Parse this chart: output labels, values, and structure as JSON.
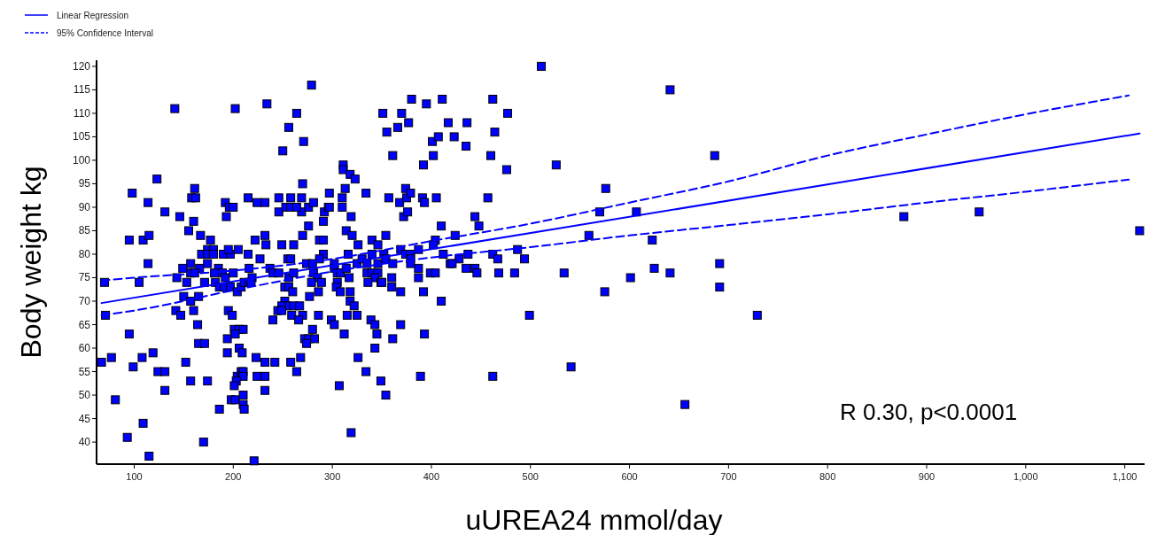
{
  "chart_data": {
    "type": "scatter",
    "xlabel": "uUREA24 mmol/day",
    "ylabel": "Body weight kg",
    "xlim": [
      62,
      1120
    ],
    "ylim": [
      35.3,
      121.3
    ],
    "xticks": [
      100,
      200,
      300,
      400,
      500,
      600,
      700,
      800,
      900,
      {
        "value": 1000,
        "label": "1,000"
      },
      {
        "value": 1100,
        "label": "1,100"
      }
    ],
    "yticks": [
      40,
      45,
      50,
      55,
      60,
      65,
      70,
      75,
      80,
      85,
      90,
      95,
      100,
      105,
      110,
      115,
      120
    ],
    "grid": false,
    "legend": "top left",
    "annotations": [
      "R 0.30, p<0.0001"
    ],
    "series": [
      {
        "color": "#0000ff",
        "marker": "square",
        "x": [
          141,
          202,
          123,
          98,
          114,
          131,
          146,
          70,
          71,
          95,
          109,
          115,
          114,
          105,
          95,
          67,
          77,
          108,
          119,
          99,
          124,
          131,
          131,
          81,
          109,
          93,
          115,
          161,
          158,
          162,
          160,
          155,
          167,
          177,
          168,
          174,
          180,
          174,
          180,
          157,
          174,
          149,
          166,
          185,
          157,
          161,
          181,
          143,
          153,
          171,
          182,
          150,
          157,
          165,
          142,
          147,
          160,
          164,
          165,
          171,
          152,
          157,
          174,
          170,
          186,
          192,
          193,
          196,
          200,
          215,
          224,
          232,
          190,
          197,
          195,
          205,
          215,
          200,
          216,
          219,
          227,
          222,
          232,
          233,
          189,
          192,
          186,
          191,
          197,
          204,
          208,
          211,
          216,
          218,
          195,
          199,
          194,
          201,
          206,
          210,
          202,
          206,
          209,
          194,
          223,
          232,
          204,
          208,
          210,
          210,
          203,
          201,
          198,
          202,
          210,
          210,
          211,
          224,
          232,
          232,
          221,
          234,
          279,
          264,
          256,
          271,
          250,
          351,
          370,
          380,
          395,
          411,
          417,
          355,
          366,
          377,
          401,
          407,
          361,
          402,
          392,
          311,
          311,
          318,
          323,
          270,
          297,
          313,
          334,
          357,
          368,
          374,
          375,
          379,
          391,
          393,
          405,
          372,
          376,
          310,
          310,
          319,
          292,
          291,
          296,
          276,
          269,
          269,
          258,
          246,
          246,
          253,
          258,
          264,
          276,
          281,
          297,
          270,
          287,
          291,
          314,
          320,
          354,
          340,
          346,
          326,
          249,
          261,
          255,
          258,
          291,
          287,
          274,
          280,
          302,
          316,
          325,
          330,
          335,
          340,
          346,
          352,
          354,
          369,
          374,
          379,
          379,
          387,
          404,
          410,
          402,
          412,
          419,
          387,
          361,
          379,
          237,
          240,
          246,
          256,
          261,
          281,
          285,
          302,
          305,
          308,
          314,
          317,
          335,
          340,
          346,
          343,
          349,
          360,
          387,
          399,
          404,
          252,
          256,
          260,
          279,
          289,
          305,
          304,
          308,
          318,
          336,
          350,
          360,
          369,
          392,
          410,
          277,
          286,
          252,
          254,
          249,
          261,
          267,
          245,
          249,
          259,
          270,
          266,
          240,
          286,
          299,
          302,
          315,
          325,
          339,
          343,
          369,
          318,
          322,
          312,
          345,
          361,
          393,
          280,
          272,
          276,
          282,
          274,
          343,
          268,
          326,
          242,
          258,
          264,
          334,
          389,
          349,
          307,
          354,
          319,
          511,
          641,
          462,
          477,
          436,
          423,
          464,
          435,
          460,
          526,
          476,
          457,
          576,
          444,
          448,
          570,
          607,
          424,
          559,
          623,
          437,
          462,
          487,
          428,
          467,
          494,
          421,
          435,
          444,
          446,
          468,
          484,
          534,
          625,
          601,
          641,
          575,
          499,
          541,
          462,
          656,
          686,
          691,
          691,
          729,
          877,
          953,
          1115
        ],
        "values": [
          111,
          111,
          96,
          93,
          91,
          89,
          88,
          74,
          67,
          83,
          83,
          84,
          78,
          74,
          63,
          57,
          58,
          58,
          59,
          56,
          55,
          55,
          51,
          49,
          44,
          41,
          37,
          94,
          92,
          92,
          87,
          85,
          84,
          83,
          80,
          81,
          81,
          80,
          80,
          78,
          78,
          77,
          77,
          77,
          76,
          76,
          76,
          75,
          74,
          74,
          74,
          71,
          70,
          71,
          68,
          67,
          68,
          65,
          61,
          61,
          57,
          53,
          53,
          40,
          47,
          91,
          88,
          90,
          90,
          92,
          91,
          91,
          80,
          80,
          81,
          81,
          80,
          76,
          77,
          75,
          79,
          83,
          84,
          82,
          76,
          75,
          73,
          73,
          73,
          72,
          73,
          74,
          74,
          74,
          68,
          67,
          62,
          64,
          64,
          64,
          63,
          60,
          59,
          59,
          58,
          57,
          54,
          55,
          55,
          54,
          53,
          52,
          49,
          49,
          50,
          48,
          47,
          54,
          54,
          51,
          36,
          112,
          116,
          110,
          107,
          104,
          102,
          110,
          110,
          113,
          112,
          113,
          108,
          106,
          107,
          108,
          104,
          105,
          101,
          101,
          99,
          99,
          98,
          97,
          96,
          95,
          93,
          94,
          93,
          92,
          91,
          94,
          92,
          93,
          92,
          91,
          92,
          88,
          89,
          92,
          90,
          88,
          89,
          87,
          90,
          86,
          89,
          92,
          92,
          89,
          92,
          90,
          90,
          90,
          90,
          91,
          90,
          84,
          83,
          83,
          85,
          84,
          84,
          83,
          82,
          82,
          82,
          82,
          79,
          79,
          80,
          79,
          78,
          78,
          78,
          80,
          78,
          79,
          78,
          80,
          78,
          80,
          79,
          81,
          80,
          80,
          79,
          81,
          83,
          86,
          82,
          80,
          78,
          77,
          78,
          78,
          77,
          76,
          76,
          75,
          76,
          76,
          75,
          77,
          76,
          76,
          77,
          75,
          76,
          76,
          76,
          75,
          74,
          75,
          75,
          76,
          76,
          73,
          73,
          72,
          74,
          74,
          74,
          73,
          72,
          72,
          74,
          74,
          73,
          72,
          72,
          70,
          71,
          72,
          70,
          69,
          69,
          69,
          69,
          68,
          68,
          67,
          67,
          66,
          66,
          67,
          66,
          65,
          67,
          67,
          66,
          65,
          65,
          70,
          69,
          63,
          63,
          62,
          63,
          64,
          62,
          62,
          62,
          61,
          60,
          58,
          58,
          57,
          57,
          55,
          55,
          54,
          53,
          52,
          50,
          42,
          120,
          115,
          113,
          110,
          108,
          105,
          106,
          103,
          101,
          99,
          98,
          92,
          94,
          88,
          86,
          89,
          89,
          84,
          84,
          83,
          80,
          80,
          81,
          79,
          79,
          79,
          78,
          77,
          77,
          76,
          76,
          76,
          76,
          77,
          75,
          76,
          72,
          67,
          56,
          54,
          48,
          101,
          78,
          73,
          67,
          88,
          89,
          85
        ]
      },
      {
        "type": "line",
        "name": "Linear Regression",
        "color": "#0000ff",
        "line_style": "solid",
        "x": [
          67,
          1115
        ],
        "values": [
          69.6,
          105.7
        ]
      },
      {
        "type": "line",
        "name": "95% Confidence Interval",
        "color": "#0000ff",
        "line_style": "dashed",
        "x": [
          67,
          100,
          200,
          300,
          400,
          500,
          600,
          700,
          800,
          900,
          1000,
          1104
        ],
        "values": [
          74.4,
          75.0,
          76.5,
          79.0,
          82.8,
          86.5,
          91.0,
          95.5,
          101.0,
          105.5,
          109.8,
          113.8
        ]
      },
      {
        "type": "line",
        "color": "#0000ff",
        "line_style": "dashed",
        "x": [
          67,
          100,
          200,
          300,
          400,
          500,
          600,
          700,
          800,
          900,
          1000,
          1104
        ],
        "values": [
          67.0,
          68.0,
          72.3,
          76.3,
          79.3,
          81.5,
          84.0,
          86.2,
          88.5,
          91.0,
          93.3,
          95.9
        ]
      }
    ]
  }
}
